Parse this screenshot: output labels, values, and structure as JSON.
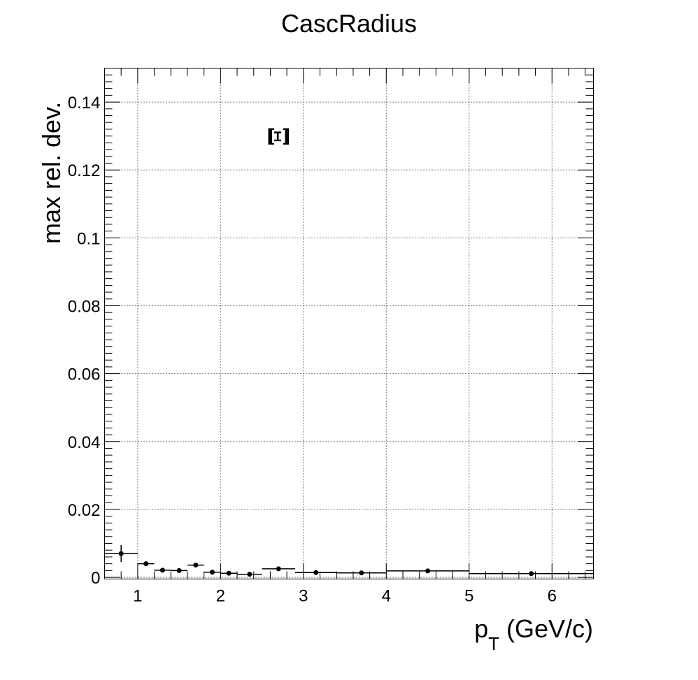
{
  "chart_data": {
    "type": "scatter",
    "title": "CascRadius",
    "xlabel_main": "p",
    "xlabel_sub": "T",
    "xlabel_rest": " (GeV/c)",
    "ylabel": "max rel. dev.",
    "annotation": "Ξ",
    "xlim": [
      0.6,
      6.5
    ],
    "ylim": [
      -0.0005,
      0.15
    ],
    "grid": true,
    "x_ticks": [
      1,
      2,
      3,
      4,
      5,
      6
    ],
    "x_tick_labels": [
      "1",
      "2",
      "3",
      "4",
      "5",
      "6"
    ],
    "y_ticks": [
      0,
      0.02,
      0.04,
      0.06,
      0.08,
      0.1,
      0.12,
      0.14
    ],
    "y_tick_labels": [
      "0",
      "0.02",
      "0.04",
      "0.06",
      "0.08",
      "0.1",
      "0.12",
      "0.14"
    ],
    "series": [
      {
        "points": [
          {
            "x": 0.8,
            "xlo": 0.6,
            "xhi": 1.0,
            "y": 0.007,
            "yerr": 0.0025
          },
          {
            "x": 1.1,
            "xlo": 1.0,
            "xhi": 1.2,
            "y": 0.004,
            "yerr": 0.0005
          },
          {
            "x": 1.3,
            "xlo": 1.2,
            "xhi": 1.4,
            "y": 0.0021,
            "yerr": 0.0004
          },
          {
            "x": 1.5,
            "xlo": 1.4,
            "xhi": 1.6,
            "y": 0.002,
            "yerr": 0.0005
          },
          {
            "x": 1.7,
            "xlo": 1.6,
            "xhi": 1.8,
            "y": 0.0036,
            "yerr": 0.0004
          },
          {
            "x": 1.9,
            "xlo": 1.8,
            "xhi": 2.0,
            "y": 0.0015,
            "yerr": 0.0003
          },
          {
            "x": 2.1,
            "xlo": 2.0,
            "xhi": 2.2,
            "y": 0.0012,
            "yerr": 0.0003
          },
          {
            "x": 2.35,
            "xlo": 2.2,
            "xhi": 2.5,
            "y": 0.0009,
            "yerr": 0.0003
          },
          {
            "x": 2.7,
            "xlo": 2.5,
            "xhi": 2.9,
            "y": 0.0025,
            "yerr": 0.0003
          },
          {
            "x": 3.15,
            "xlo": 2.9,
            "xhi": 3.4,
            "y": 0.0014,
            "yerr": 0.0003
          },
          {
            "x": 3.7,
            "xlo": 3.4,
            "xhi": 4.0,
            "y": 0.0013,
            "yerr": 0.0003
          },
          {
            "x": 4.5,
            "xlo": 4.0,
            "xhi": 5.0,
            "y": 0.0019,
            "yerr": 0.0003
          },
          {
            "x": 5.75,
            "xlo": 5.0,
            "xhi": 6.5,
            "y": 0.0011,
            "yerr": 0.0003
          }
        ]
      }
    ]
  }
}
